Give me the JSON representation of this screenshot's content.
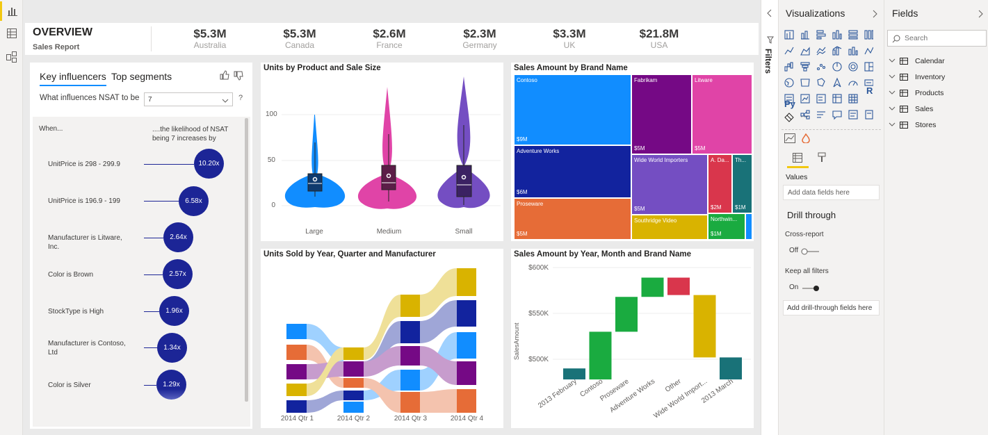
{
  "nav": {
    "items": [
      "report-view",
      "data-view",
      "model-view"
    ]
  },
  "header": {
    "title": "OVERVIEW",
    "subtitle": "Sales Report",
    "kpis": [
      {
        "value": "$5.3M",
        "label": "Australia"
      },
      {
        "value": "$5.3M",
        "label": "Canada"
      },
      {
        "value": "$2.6M",
        "label": "France"
      },
      {
        "value": "$2.3M",
        "label": "Germany"
      },
      {
        "value": "$3.3M",
        "label": "UK"
      },
      {
        "value": "$21.8M",
        "label": "USA"
      }
    ]
  },
  "key_influencers": {
    "tab_active": "Key influencers",
    "tab_other": "Top segments",
    "question": "What influences NSAT to be",
    "select_value": "7",
    "help": "?",
    "col_when": "When...",
    "col_likelihood": "....the likelihood of NSAT being 7 increases by",
    "rows": [
      {
        "label": "UnitPrice is 298 - 299.9",
        "value": "10.20x"
      },
      {
        "label": "UnitPrice is 196.9 - 199",
        "value": "6.58x"
      },
      {
        "label": "Manufacturer is Litware, Inc.",
        "value": "2.64x"
      },
      {
        "label": "Color is Brown",
        "value": "2.57x"
      },
      {
        "label": "StockType is High",
        "value": "1.96x"
      },
      {
        "label": "Manufacturer is Contoso, Ltd",
        "value": "1.34x"
      },
      {
        "label": "Color is Silver",
        "value": "1.29x"
      }
    ]
  },
  "violin": {
    "title": "Units by Product and Sale Size",
    "yticks": [
      "100",
      "50",
      "0"
    ],
    "categories": [
      "Large",
      "Medium",
      "Small"
    ]
  },
  "treemap": {
    "title": "Sales Amount by Brand Name",
    "tiles": [
      {
        "name": "Contoso",
        "amount": "$9M",
        "color": "#118dff"
      },
      {
        "name": "Fabrikam",
        "amount": "$5M",
        "color": "#750985"
      },
      {
        "name": "Litware",
        "amount": "$5M",
        "color": "#e044a7"
      },
      {
        "name": "Adventure Works",
        "amount": "$6M",
        "color": "#12239e"
      },
      {
        "name": "Wide World Importers",
        "amount": "$5M",
        "color": "#744ec2"
      },
      {
        "name": "A. Da...",
        "amount": "$2M",
        "color": "#d9364c"
      },
      {
        "name": "Th...",
        "amount": "$1M",
        "color": "#197278"
      },
      {
        "name": "Proseware",
        "amount": "$5M",
        "color": "#e66c37"
      },
      {
        "name": "Southridge Video",
        "amount": "$5M",
        "color": "#d9b300"
      },
      {
        "name": "Northwin...",
        "amount": "$1M",
        "color": "#1aab40"
      }
    ]
  },
  "ribbon": {
    "title": "Units Sold by Year, Quarter and Manufacturer",
    "categories": [
      "2014 Qtr 1",
      "2014 Qtr 2",
      "2014 Qtr 3",
      "2014 Qtr 4"
    ]
  },
  "chart_data": {
    "type": "bar",
    "title": "Sales Amount by Year, Month and Brand Name",
    "ylabel": "SalesAmount",
    "ytick_labels": [
      "$600K",
      "$550K",
      "$500K"
    ],
    "ylim": [
      480000,
      605000
    ],
    "categories": [
      "2013 February",
      "Contoso",
      "Proseware",
      "Adventure Works",
      "Other",
      "Wide World Import...",
      "2013 March"
    ],
    "waterfall": [
      {
        "start": 490000,
        "end": 478000,
        "color": "#197278"
      },
      {
        "start": 478000,
        "end": 530000,
        "color": "#1aab40"
      },
      {
        "start": 530000,
        "end": 568000,
        "color": "#1aab40"
      },
      {
        "start": 568000,
        "end": 589000,
        "color": "#1aab40"
      },
      {
        "start": 589000,
        "end": 570000,
        "color": "#d9364c"
      },
      {
        "start": 570000,
        "end": 502000,
        "color": "#d9b300"
      },
      {
        "start": 502000,
        "end": 478000,
        "color": "#197278"
      }
    ]
  },
  "filters": {
    "label": "Filters"
  },
  "visualizations": {
    "title": "Visualizations",
    "values_label": "Values",
    "values_placeholder": "Add data fields here",
    "drill_title": "Drill through",
    "cross_report": "Cross-report",
    "cross_state": "Off",
    "keep_filters": "Keep all filters",
    "keep_state": "On",
    "drill_placeholder": "Add drill-through fields here",
    "py": "Py",
    "r": "R",
    "more": "···"
  },
  "fields": {
    "title": "Fields",
    "search_placeholder": "Search",
    "tables": [
      "Calendar",
      "Inventory",
      "Products",
      "Sales",
      "Stores"
    ]
  }
}
